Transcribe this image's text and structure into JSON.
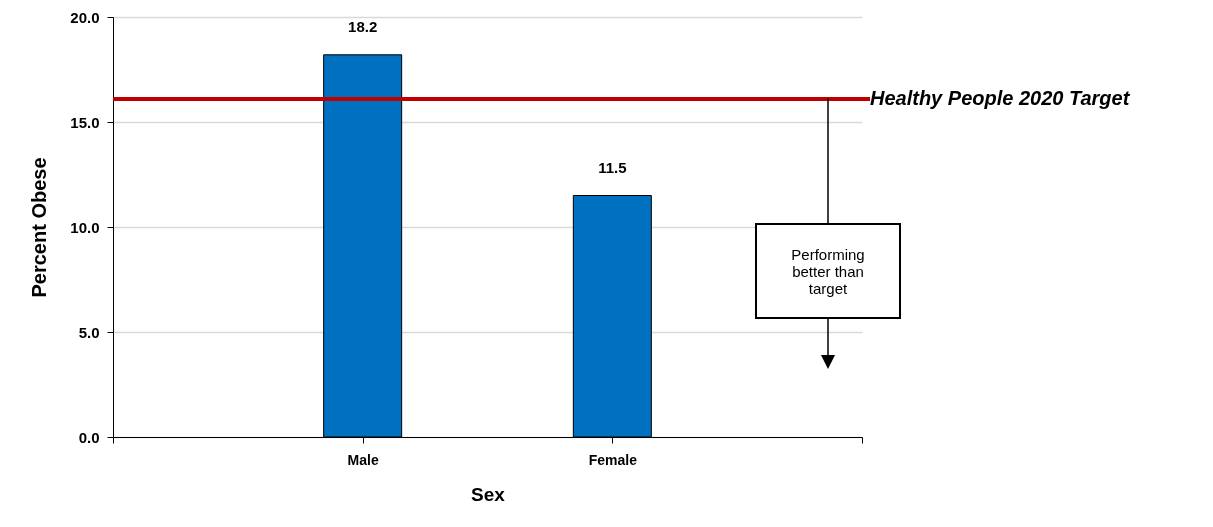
{
  "chart_data": {
    "type": "bar",
    "xlabel": "Sex",
    "ylabel": "Percent Obese",
    "categories": [
      null,
      "Male",
      "Female",
      null
    ],
    "values": [
      null,
      18.2,
      11.5,
      null
    ],
    "color": "#0070c0",
    "ylim": [
      0,
      20
    ],
    "yticks": [
      {
        "value": 0,
        "label": "0.0"
      },
      {
        "value": 5,
        "label": "5.0"
      },
      {
        "value": 10,
        "label": "10.0"
      },
      {
        "value": 15,
        "label": "15.0"
      },
      {
        "value": 20,
        "label": "20.0"
      }
    ],
    "grid": "y",
    "data_labels": true,
    "ref_lines": [
      {
        "axis": "y",
        "value": 16.1,
        "label": "Healthy People 2020 Target",
        "color": "#c00000"
      }
    ],
    "annotations": [
      "Performing better than target"
    ]
  }
}
